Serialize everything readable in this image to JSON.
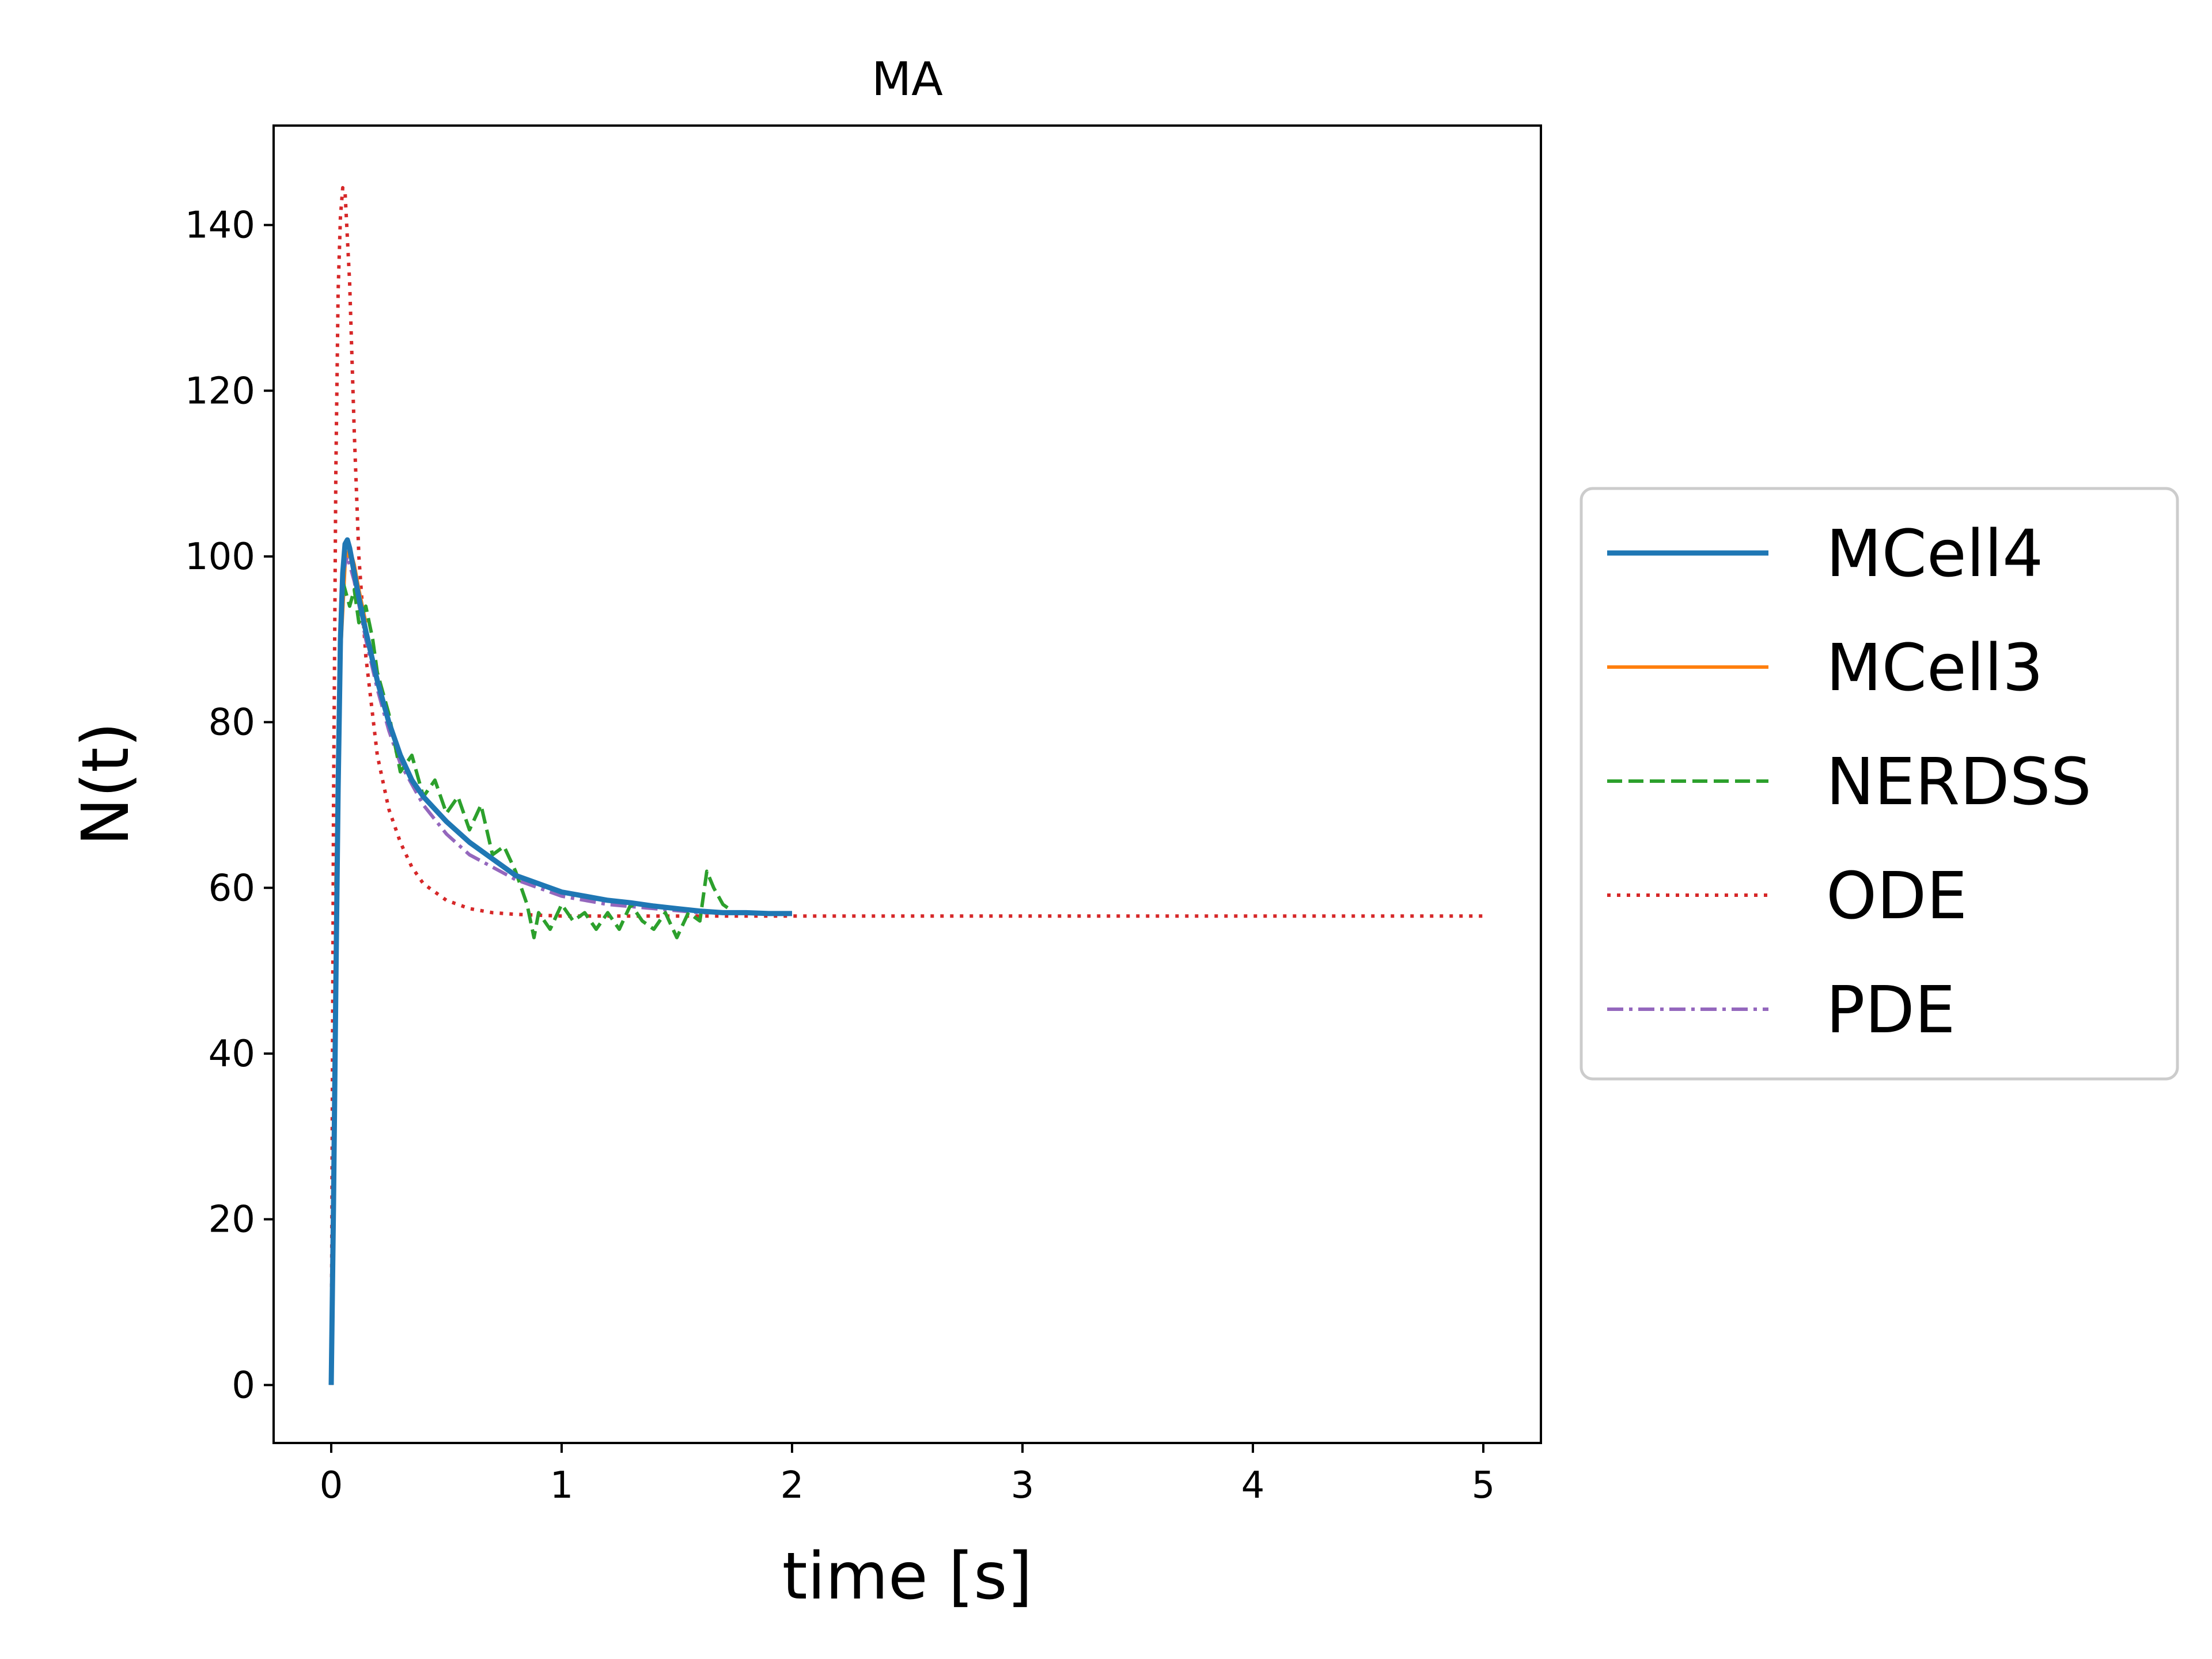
{
  "chart_data": {
    "type": "line",
    "title": "MA",
    "xlabel": "time [s]",
    "ylabel": "N(t)",
    "xlim": [
      -0.25,
      5.25
    ],
    "ylim": [
      -7,
      152
    ],
    "xticks": [
      0,
      1,
      2,
      3,
      4,
      5
    ],
    "yticks": [
      0,
      20,
      40,
      60,
      80,
      100,
      120,
      140
    ],
    "grid": false,
    "legend": {
      "placement": "right-outside"
    },
    "series": [
      {
        "name": "MCell4",
        "color": "#1f77b4",
        "style": "solid",
        "x": [
          0,
          0.01,
          0.02,
          0.03,
          0.04,
          0.05,
          0.06,
          0.07,
          0.08,
          0.1,
          0.12,
          0.15,
          0.2,
          0.25,
          0.3,
          0.35,
          0.4,
          0.5,
          0.6,
          0.7,
          0.8,
          0.9,
          1.0,
          1.1,
          1.2,
          1.3,
          1.4,
          1.5,
          1.6,
          1.7,
          1.8,
          1.9,
          2.0
        ],
        "y": [
          0,
          22,
          48,
          72,
          90,
          98,
          101.5,
          102,
          101,
          98,
          95,
          91,
          85,
          80,
          76,
          73,
          71,
          68,
          65.5,
          63.5,
          61.5,
          60.5,
          59.5,
          59,
          58.5,
          58.2,
          57.8,
          57.5,
          57.2,
          57,
          57,
          56.9,
          56.9
        ]
      },
      {
        "name": "MCell3",
        "color": "#ff7f0e",
        "style": "solid",
        "x": [
          0.02,
          0.04,
          0.06,
          0.08,
          0.1,
          0.12,
          0.15
        ],
        "y": [
          60,
          88,
          99,
          101,
          99,
          96,
          92
        ]
      },
      {
        "name": "NERDSS",
        "color": "#2ca02c",
        "style": "dashed",
        "x": [
          0.05,
          0.08,
          0.1,
          0.12,
          0.15,
          0.18,
          0.2,
          0.25,
          0.3,
          0.35,
          0.4,
          0.45,
          0.5,
          0.55,
          0.6,
          0.65,
          0.7,
          0.75,
          0.8,
          0.85,
          0.88,
          0.9,
          0.95,
          1.0,
          1.05,
          1.1,
          1.15,
          1.2,
          1.25,
          1.3,
          1.35,
          1.4,
          1.45,
          1.5,
          1.55,
          1.6,
          1.63,
          1.66,
          1.7,
          1.75,
          1.8
        ],
        "y": [
          97,
          94,
          96,
          92,
          94,
          90,
          86,
          81,
          74,
          76,
          71,
          73,
          69,
          71,
          67,
          70,
          64,
          65,
          62,
          58,
          54,
          57,
          55,
          58,
          56,
          57,
          55,
          57,
          55,
          58,
          56,
          55,
          57,
          54,
          57,
          56,
          62,
          60,
          58,
          57,
          57
        ]
      },
      {
        "name": "ODE",
        "color": "#d62728",
        "style": "dotted",
        "x": [
          0,
          0.01,
          0.02,
          0.03,
          0.04,
          0.05,
          0.06,
          0.08,
          0.1,
          0.12,
          0.15,
          0.2,
          0.25,
          0.3,
          0.35,
          0.4,
          0.5,
          0.6,
          0.7,
          0.8,
          0.9,
          1.0,
          1.2,
          1.5,
          2.0,
          3.0,
          4.0,
          5.0
        ],
        "y": [
          0,
          70,
          110,
          132,
          141,
          144.5,
          144,
          133,
          115,
          100,
          88,
          76,
          69.5,
          65.5,
          62.5,
          60.5,
          58.5,
          57.5,
          57,
          56.8,
          56.7,
          56.6,
          56.6,
          56.6,
          56.6,
          56.6,
          56.6,
          56.6
        ]
      },
      {
        "name": "PDE",
        "color": "#9467bd",
        "style": "dashdot",
        "x": [
          0.05,
          0.07,
          0.1,
          0.15,
          0.2,
          0.25,
          0.3,
          0.4,
          0.5,
          0.6,
          0.7,
          0.8,
          1.0,
          1.2,
          1.4,
          1.6,
          1.8
        ],
        "y": [
          98,
          100,
          97,
          90,
          84,
          79,
          75,
          70,
          66.5,
          64,
          62.5,
          61,
          59,
          58,
          57.5,
          57,
          57
        ]
      }
    ]
  }
}
